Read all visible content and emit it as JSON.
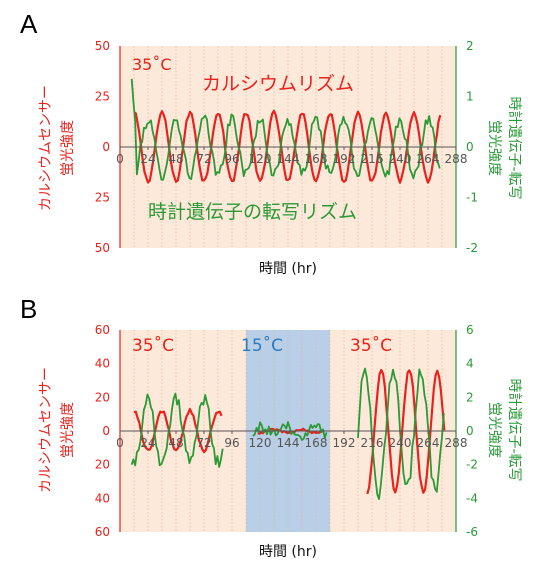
{
  "colors": {
    "red": "#e8221c",
    "green": "#2a9a37",
    "blue": "#2a7ac0",
    "black": "#111111",
    "peach": "#fde9da",
    "blue_band": "#b9cfe7",
    "divider": "#e2b8a0"
  },
  "chart_data": [
    {
      "panel": "A",
      "type": "line",
      "xlabel": "時間 (hr)",
      "ylabel_left_line1": "カルシウムセンサー",
      "ylabel_left_line2": "蛍光強度",
      "ylabel_right_line1": "時計遺伝子-転写",
      "ylabel_right_line2": "蛍光強度",
      "xlim": [
        0,
        288
      ],
      "x_ticks": [
        "0",
        "24",
        "48",
        "72",
        "96",
        "120",
        "144",
        "168",
        "192",
        "216",
        "240",
        "264",
        "288"
      ],
      "ylim_left": [
        -50,
        50
      ],
      "y_ticks_left": [
        "50",
        "25",
        "0",
        "25",
        "50"
      ],
      "ylim_right": [
        -2,
        2
      ],
      "y_ticks_right": [
        "2",
        "1",
        "0",
        "-1",
        "-2"
      ],
      "temperature_labels": [
        {
          "text": "35˚C",
          "x_hr": 4
        }
      ],
      "annotations": [
        {
          "text": "カルシウムリズム"
        },
        {
          "text": "時計遺伝子の転写リズム"
        }
      ],
      "series": [
        {
          "axis": "left",
          "color_key": "red",
          "kind": "sine",
          "x_start": 12,
          "x_end": 275,
          "period": 24,
          "peak_hr": 12,
          "amplitude": 17,
          "offset": 0,
          "noise": 1
        },
        {
          "axis": "right",
          "color_key": "green",
          "kind": "sine",
          "x_start": 10,
          "x_end": 275,
          "period": 24,
          "peak_hr": 0,
          "amplitude": 0.55,
          "offset": 0,
          "noise": 0.12,
          "start_values": [
            1.35,
            0.9,
            0.5
          ]
        }
      ]
    },
    {
      "panel": "B",
      "type": "line",
      "xlabel": "時間 (hr)",
      "ylabel_left_line1": "カルシウムセンサー",
      "ylabel_left_line2": "蛍光強度",
      "ylabel_right_line1": "時計遺伝子-転写",
      "ylabel_right_line2": "蛍光強度",
      "xlim": [
        0,
        288
      ],
      "x_ticks": [
        "0",
        "24",
        "48",
        "72",
        "96",
        "120",
        "144",
        "168",
        "192",
        "216",
        "240",
        "264",
        "288"
      ],
      "ylim_left": [
        -60,
        60
      ],
      "y_ticks_left": [
        "60",
        "40",
        "20",
        "0",
        "20",
        "40",
        "60"
      ],
      "ylim_right": [
        -6,
        6
      ],
      "y_ticks_right": [
        "6",
        "4",
        "2",
        "0",
        "-2",
        "-4",
        "-6"
      ],
      "cold_window_hr": [
        108,
        180
      ],
      "temperature_labels": [
        {
          "text": "35˚C",
          "x_hr": 4,
          "color_key": "red"
        },
        {
          "text": "15˚C",
          "x_hr": 114,
          "color_key": "blue"
        },
        {
          "text": "35˚C",
          "x_hr": 198,
          "color_key": "red"
        }
      ],
      "series": [
        {
          "axis": "left",
          "color_key": "red",
          "kind": "sine",
          "x_start": 12,
          "x_end": 88,
          "period": 24,
          "peak_hr": 12,
          "amplitude": 12,
          "offset": 0,
          "noise": 1
        },
        {
          "axis": "left",
          "color_key": "red",
          "kind": "sine",
          "x_start": 118,
          "x_end": 175,
          "period": 24,
          "peak_hr": 12,
          "amplitude": 1,
          "offset": 0,
          "noise": 0.6
        },
        {
          "axis": "left",
          "color_key": "red",
          "kind": "sine",
          "x_start": 212,
          "x_end": 278,
          "period": 24,
          "peak_hr": 272,
          "amplitude": 36,
          "offset": 0,
          "noise": 1.5
        },
        {
          "axis": "right",
          "color_key": "green",
          "kind": "sine",
          "x_start": 10,
          "x_end": 88,
          "period": 24,
          "peak_hr": 0,
          "amplitude": 1.9,
          "offset": 0,
          "noise": 0.4
        },
        {
          "axis": "right",
          "color_key": "green",
          "kind": "sine",
          "x_start": 114,
          "x_end": 178,
          "period": 24,
          "peak_hr": 0,
          "amplitude": 0.2,
          "offset": 0,
          "noise": 0.35
        },
        {
          "axis": "right",
          "color_key": "green",
          "kind": "sine",
          "x_start": 204,
          "x_end": 278,
          "period": 24,
          "peak_hr": 258,
          "amplitude": 3.6,
          "offset": 0,
          "noise": 0.5
        }
      ]
    }
  ]
}
